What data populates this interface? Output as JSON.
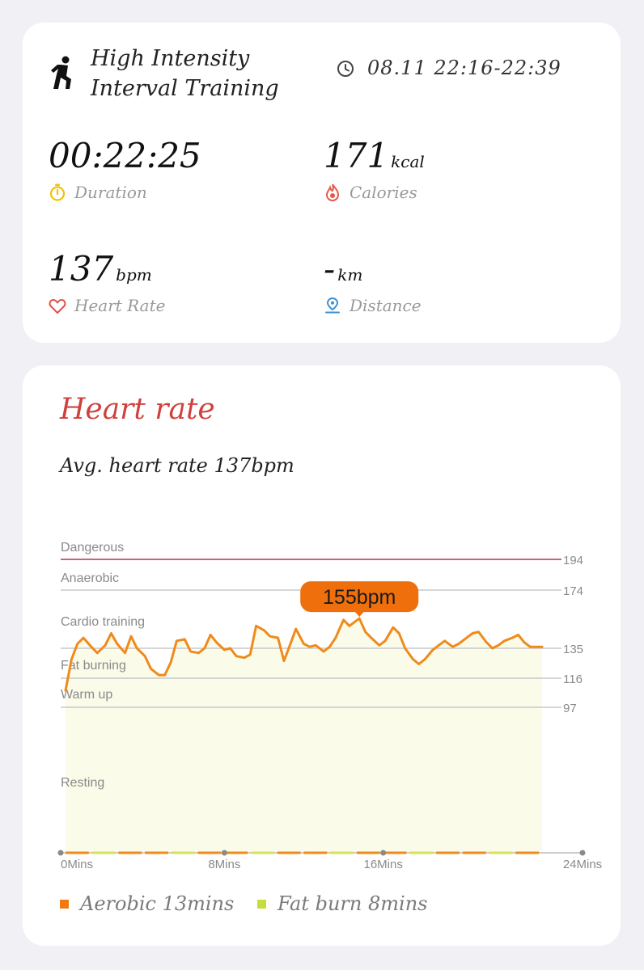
{
  "workout": {
    "title_line1": "High Intensity",
    "title_line2": "Interval Training",
    "time_range": "08.11 22:16-22:39",
    "activity_icon": "running-person-icon",
    "metrics": {
      "duration": {
        "value": "00:22:25",
        "unit": "",
        "label": "Duration",
        "icon": "stopwatch-icon",
        "color": "#f2c200"
      },
      "calories": {
        "value": "171",
        "unit": "kcal",
        "label": "Calories",
        "icon": "flame-icon",
        "color": "#e8574a"
      },
      "heart_rate": {
        "value": "137",
        "unit": "bpm",
        "label": "Heart Rate",
        "icon": "heart-icon",
        "color": "#e0504a"
      },
      "distance": {
        "value": "-",
        "unit": "km",
        "label": "Distance",
        "icon": "location-pin-icon",
        "color": "#3b8fd6"
      }
    }
  },
  "heart_rate_card": {
    "title": "Heart rate",
    "avg_text": "Avg. heart rate 137bpm",
    "legend": [
      {
        "label": "Aerobic 13mins",
        "color": "#f07a10"
      },
      {
        "label": "Fat burn 8mins",
        "color": "#c8dc3c"
      }
    ]
  },
  "chart_data": {
    "type": "line",
    "x_unit": "Mins",
    "xlim": [
      0,
      24
    ],
    "x_ticks": [
      0,
      8,
      16,
      24
    ],
    "x_tick_labels": [
      "0Mins",
      "8Mins",
      "16Mins",
      "24Mins"
    ],
    "ylim": [
      0,
      194
    ],
    "zones": [
      {
        "name": "Dangerous",
        "threshold": 194,
        "color": "#b8304a"
      },
      {
        "name": "Anaerobic",
        "threshold": 174,
        "color": "#c8c8c8"
      },
      {
        "name": "Cardio training",
        "threshold": 135,
        "color": "#c8c8c8"
      },
      {
        "name": "Fat burning",
        "threshold": 116,
        "color": "#c8c8c8"
      },
      {
        "name": "Warm up",
        "threshold": 97,
        "color": "#c8c8c8"
      },
      {
        "name": "Resting",
        "threshold": null,
        "color": "#c8c8c8"
      }
    ],
    "peak": {
      "x": 14.8,
      "y": 155,
      "label": "155bpm"
    },
    "series": [
      {
        "color": "#f08a1c",
        "x": [
          0.0,
          0.3,
          0.6,
          0.9,
          1.3,
          1.6,
          2.0,
          2.3,
          2.6,
          3.0,
          3.3,
          3.6,
          4.0,
          4.3,
          4.7,
          5.0,
          5.3,
          5.6,
          6.0,
          6.3,
          6.7,
          7.0,
          7.3,
          7.6,
          8.0,
          8.3,
          8.6,
          9.0,
          9.3,
          9.6,
          10.0,
          10.3,
          10.7,
          11.0,
          11.3,
          11.6,
          12.0,
          12.3,
          12.6,
          13.0,
          13.3,
          13.6,
          14.0,
          14.3,
          14.8,
          15.1,
          15.4,
          15.8,
          16.1,
          16.5,
          16.8,
          17.1,
          17.5,
          17.8,
          18.1,
          18.5,
          18.8,
          19.1,
          19.5,
          19.8,
          20.2,
          20.5,
          20.8,
          21.2,
          21.5,
          21.8,
          22.1,
          22.5,
          22.8,
          23.1,
          23.4,
          23.8,
          24.0
        ],
        "y": [
          108,
          128,
          138,
          142,
          136,
          132,
          137,
          145,
          138,
          132,
          143,
          135,
          130,
          122,
          118,
          118,
          126,
          140,
          141,
          133,
          132,
          135,
          144,
          139,
          134,
          135,
          130,
          129,
          131,
          150,
          147,
          143,
          142,
          127,
          137,
          148,
          138,
          136,
          137,
          133,
          136,
          142,
          154,
          150,
          155,
          146,
          142,
          137,
          140,
          149,
          145,
          135,
          128,
          125,
          128,
          134,
          137,
          140,
          136,
          138,
          142,
          145,
          146,
          139,
          135,
          137,
          140,
          142,
          144,
          139,
          136,
          136,
          136
        ]
      }
    ]
  }
}
